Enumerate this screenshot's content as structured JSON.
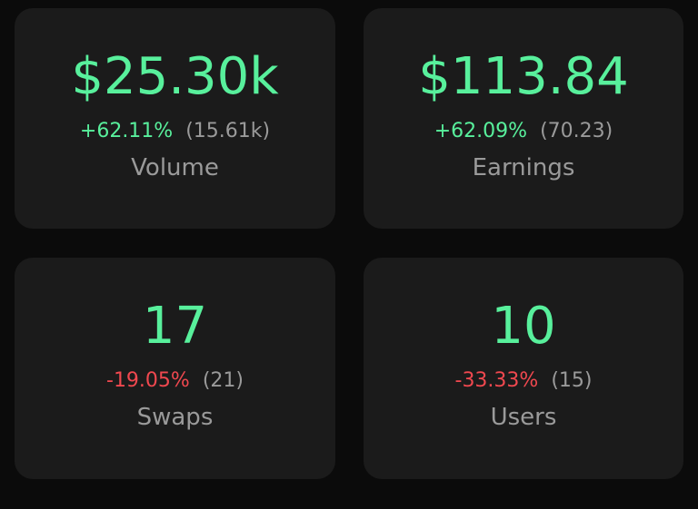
{
  "colors": {
    "background": "#0b0b0b",
    "card": "#1b1b1b",
    "positive": "#58f09c",
    "negative": "#f0484f",
    "muted": "#9a9a9a"
  },
  "cards": [
    {
      "value": "$25.30k",
      "change": "+62.11%",
      "previous": "(15.61k)",
      "label": "Volume",
      "trend": "up"
    },
    {
      "value": "$113.84",
      "change": "+62.09%",
      "previous": "(70.23)",
      "label": "Earnings",
      "trend": "up"
    },
    {
      "value": "17",
      "change": "-19.05%",
      "previous": "(21)",
      "label": "Swaps",
      "trend": "down"
    },
    {
      "value": "10",
      "change": "-33.33%",
      "previous": "(15)",
      "label": "Users",
      "trend": "down"
    }
  ]
}
